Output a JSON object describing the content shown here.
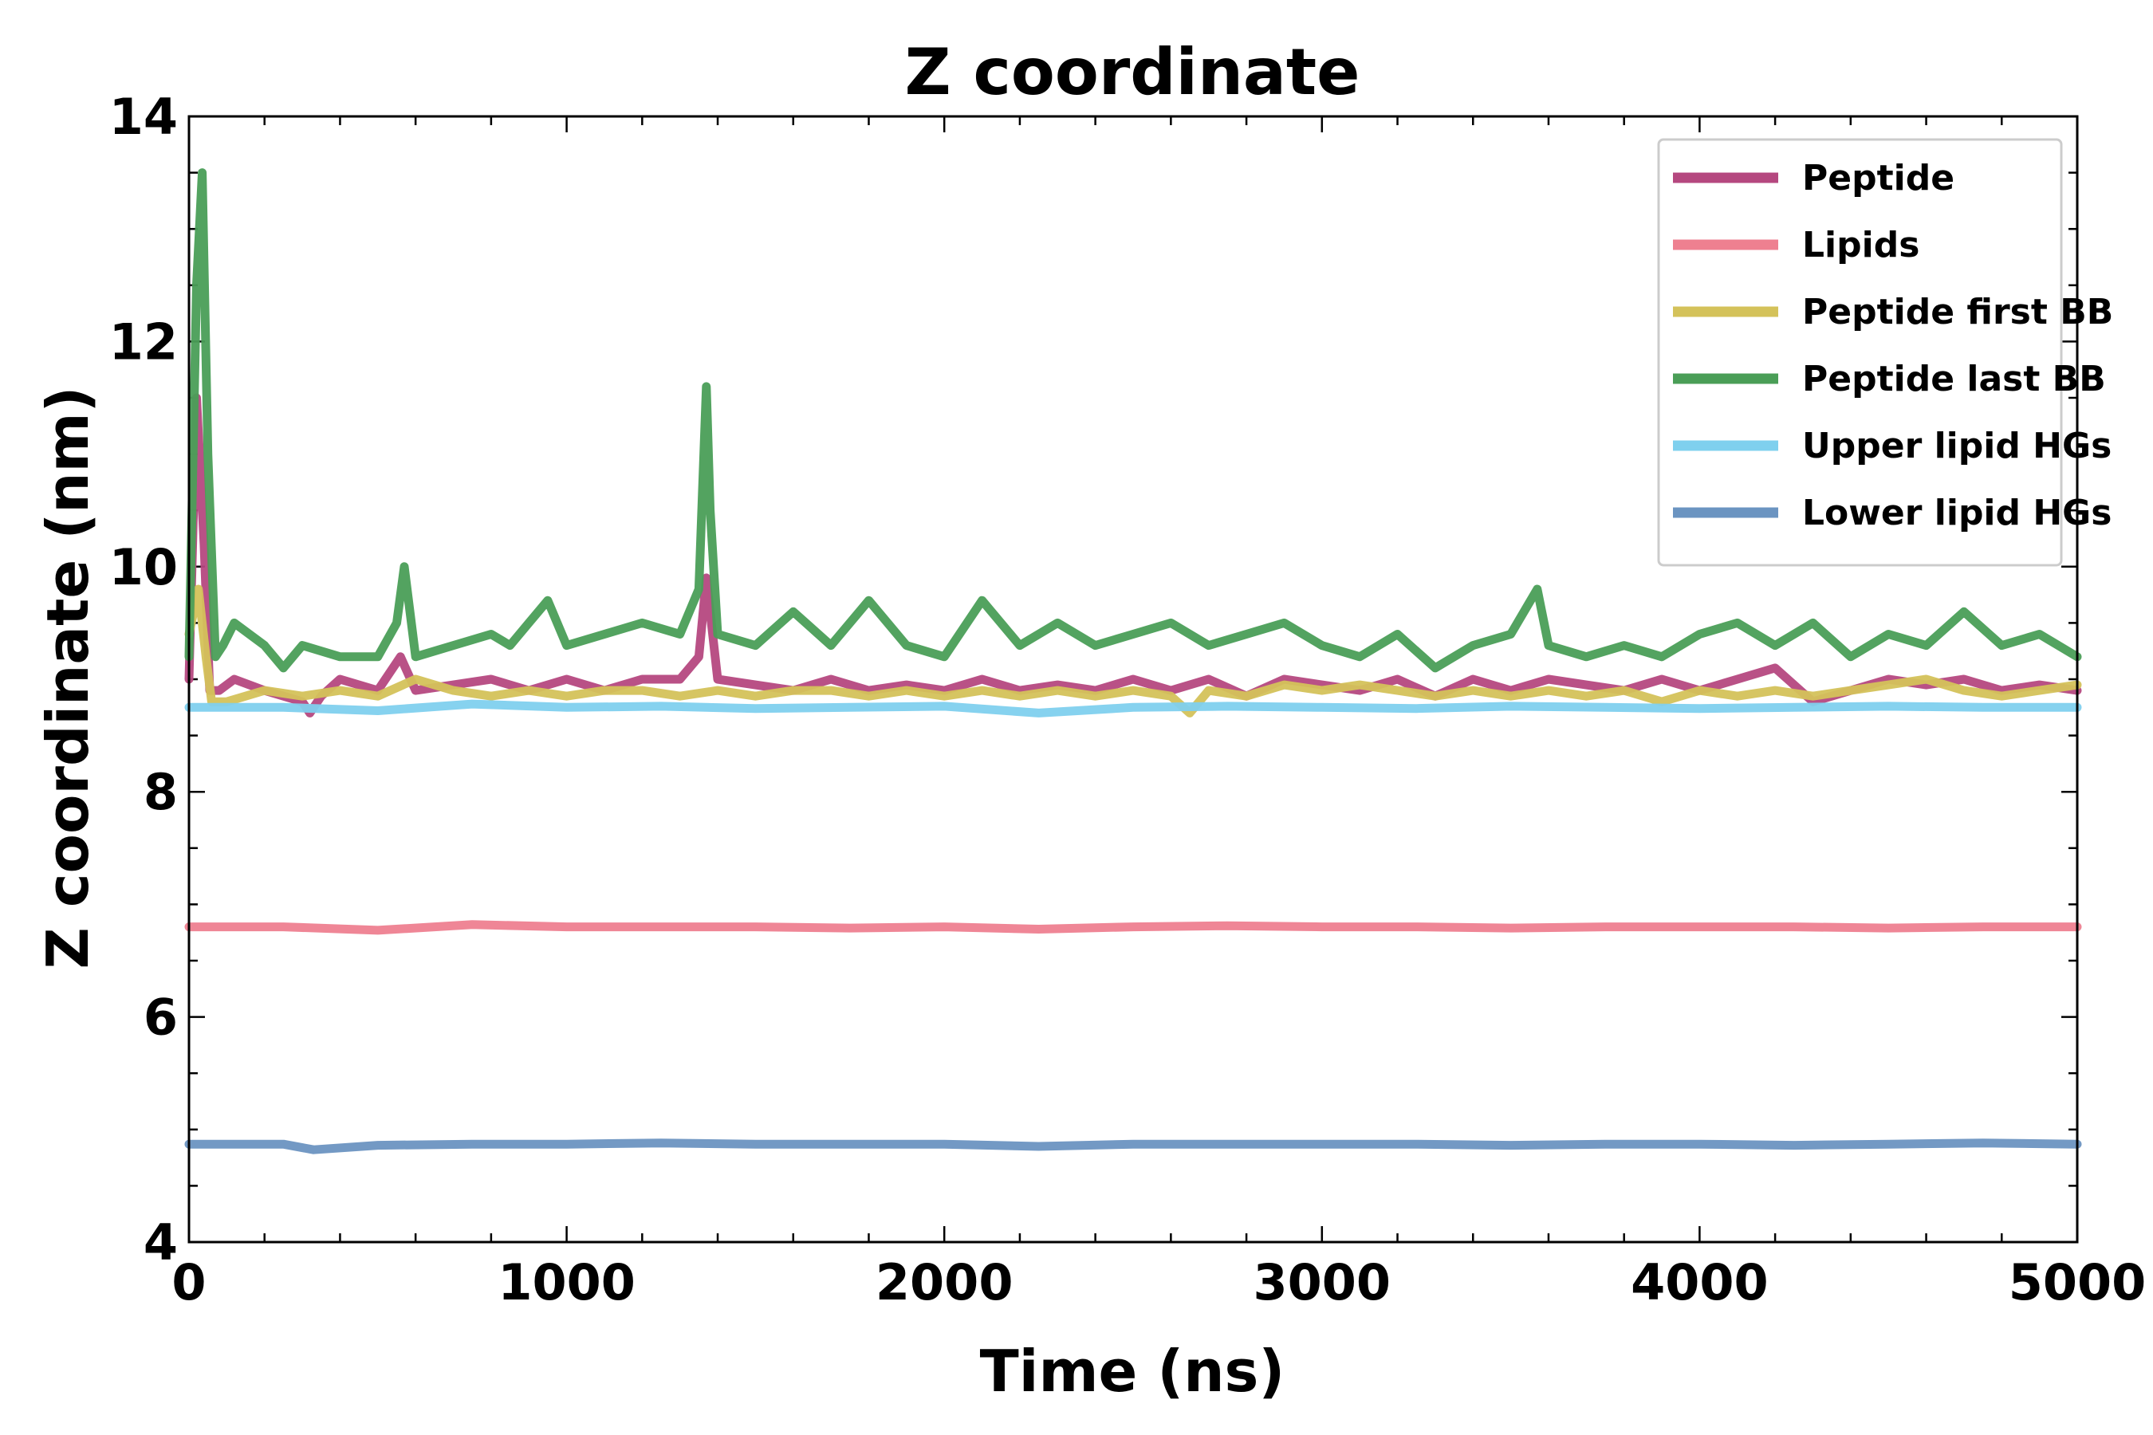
{
  "chart_data": {
    "type": "line",
    "title": "Z coordinate",
    "xlabel": "Time (ns)",
    "ylabel": "Z coordinate (nm)",
    "xlim": [
      0,
      5000
    ],
    "ylim": [
      4,
      14
    ],
    "xticks": [
      "0",
      "1000",
      "2000",
      "3000",
      "4000",
      "5000"
    ],
    "yticks": [
      "4",
      "6",
      "8",
      "10",
      "12",
      "14"
    ],
    "legend_position": "top-right",
    "series": [
      {
        "name": "Peptide",
        "color": "#b5487f",
        "x": [
          0,
          20,
          40,
          55,
          80,
          120,
          200,
          300,
          320,
          350,
          400,
          500,
          560,
          600,
          700,
          800,
          900,
          1000,
          1100,
          1200,
          1300,
          1350,
          1370,
          1400,
          1500,
          1600,
          1700,
          1800,
          1900,
          2000,
          2100,
          2200,
          2300,
          2400,
          2500,
          2600,
          2700,
          2800,
          2900,
          3000,
          3100,
          3200,
          3300,
          3400,
          3500,
          3600,
          3700,
          3800,
          3900,
          4000,
          4100,
          4200,
          4300,
          4400,
          4500,
          4600,
          4700,
          4800,
          4900,
          5000
        ],
        "values": [
          9.0,
          11.5,
          10.2,
          8.9,
          8.9,
          9.0,
          8.9,
          8.8,
          8.7,
          8.85,
          9.0,
          8.9,
          9.2,
          8.9,
          8.95,
          9.0,
          8.9,
          9.0,
          8.9,
          9.0,
          9.0,
          9.2,
          9.9,
          9.0,
          8.95,
          8.9,
          9.0,
          8.9,
          8.95,
          8.9,
          9.0,
          8.9,
          8.95,
          8.9,
          9.0,
          8.9,
          9.0,
          8.85,
          9.0,
          8.95,
          8.9,
          9.0,
          8.85,
          9.0,
          8.9,
          9.0,
          8.95,
          8.9,
          9.0,
          8.9,
          9.0,
          9.1,
          8.8,
          8.9,
          9.0,
          8.95,
          9.0,
          8.9,
          8.95,
          8.9
        ]
      },
      {
        "name": "Lipids",
        "color": "#ee8090",
        "x": [
          0,
          250,
          500,
          750,
          1000,
          1250,
          1500,
          1750,
          2000,
          2250,
          2500,
          2750,
          3000,
          3250,
          3500,
          3750,
          4000,
          4250,
          4500,
          4750,
          5000
        ],
        "values": [
          6.8,
          6.8,
          6.77,
          6.82,
          6.8,
          6.8,
          6.8,
          6.79,
          6.8,
          6.78,
          6.8,
          6.81,
          6.8,
          6.8,
          6.79,
          6.8,
          6.8,
          6.8,
          6.79,
          6.8,
          6.8
        ]
      },
      {
        "name": "Peptide first BB",
        "color": "#d4c25a",
        "x": [
          0,
          25,
          45,
          60,
          100,
          200,
          300,
          400,
          500,
          600,
          700,
          800,
          900,
          1000,
          1100,
          1200,
          1300,
          1400,
          1500,
          1600,
          1700,
          1800,
          1900,
          2000,
          2100,
          2200,
          2300,
          2400,
          2500,
          2600,
          2650,
          2700,
          2800,
          2900,
          3000,
          3100,
          3200,
          3300,
          3400,
          3500,
          3600,
          3700,
          3800,
          3900,
          4000,
          4100,
          4200,
          4300,
          4400,
          4500,
          4600,
          4700,
          4800,
          4900,
          5000
        ],
        "values": [
          9.4,
          9.8,
          9.2,
          8.8,
          8.8,
          8.9,
          8.85,
          8.9,
          8.85,
          9.0,
          8.9,
          8.85,
          8.9,
          8.85,
          8.9,
          8.9,
          8.85,
          8.9,
          8.85,
          8.9,
          8.9,
          8.85,
          8.9,
          8.85,
          8.9,
          8.85,
          8.9,
          8.85,
          8.9,
          8.85,
          8.7,
          8.9,
          8.85,
          8.95,
          8.9,
          8.95,
          8.9,
          8.85,
          8.9,
          8.85,
          8.9,
          8.85,
          8.9,
          8.8,
          8.9,
          8.85,
          8.9,
          8.85,
          8.9,
          8.95,
          9.0,
          8.9,
          8.85,
          8.9,
          8.95
        ]
      },
      {
        "name": "Peptide last BB",
        "color": "#4a9e57",
        "x": [
          0,
          20,
          35,
          50,
          70,
          90,
          120,
          200,
          250,
          300,
          400,
          500,
          550,
          570,
          600,
          700,
          800,
          850,
          900,
          950,
          1000,
          1100,
          1200,
          1300,
          1350,
          1370,
          1380,
          1400,
          1500,
          1600,
          1700,
          1800,
          1900,
          2000,
          2100,
          2200,
          2300,
          2400,
          2500,
          2600,
          2700,
          2800,
          2900,
          3000,
          3100,
          3200,
          3300,
          3400,
          3500,
          3570,
          3600,
          3700,
          3800,
          3900,
          4000,
          4100,
          4200,
          4300,
          4400,
          4500,
          4600,
          4700,
          4800,
          4900,
          5000
        ],
        "values": [
          9.2,
          12.5,
          13.5,
          11.0,
          9.2,
          9.3,
          9.5,
          9.3,
          9.1,
          9.3,
          9.2,
          9.2,
          9.5,
          10.0,
          9.2,
          9.3,
          9.4,
          9.3,
          9.5,
          9.7,
          9.3,
          9.4,
          9.5,
          9.4,
          9.8,
          11.6,
          10.5,
          9.4,
          9.3,
          9.6,
          9.3,
          9.7,
          9.3,
          9.2,
          9.7,
          9.3,
          9.5,
          9.3,
          9.4,
          9.5,
          9.3,
          9.4,
          9.5,
          9.3,
          9.2,
          9.4,
          9.1,
          9.3,
          9.4,
          9.8,
          9.3,
          9.2,
          9.3,
          9.2,
          9.4,
          9.5,
          9.3,
          9.5,
          9.2,
          9.4,
          9.3,
          9.6,
          9.3,
          9.4,
          9.2
        ]
      },
      {
        "name": "Upper lipid HGs",
        "color": "#7fd0ee",
        "x": [
          0,
          250,
          500,
          750,
          1000,
          1250,
          1500,
          1750,
          2000,
          2250,
          2500,
          2750,
          3000,
          3250,
          3500,
          3750,
          4000,
          4250,
          4500,
          4750,
          5000
        ],
        "values": [
          8.75,
          8.75,
          8.72,
          8.78,
          8.75,
          8.76,
          8.74,
          8.75,
          8.76,
          8.7,
          8.75,
          8.76,
          8.75,
          8.74,
          8.76,
          8.75,
          8.74,
          8.75,
          8.76,
          8.75,
          8.75
        ]
      },
      {
        "name": "Lower lipid HGs",
        "color": "#6b94c1",
        "x": [
          0,
          250,
          330,
          500,
          750,
          1000,
          1250,
          1500,
          1750,
          2000,
          2250,
          2500,
          2750,
          3000,
          3250,
          3500,
          3750,
          4000,
          4250,
          4500,
          4750,
          5000
        ],
        "values": [
          4.87,
          4.87,
          4.82,
          4.86,
          4.87,
          4.87,
          4.88,
          4.87,
          4.87,
          4.87,
          4.85,
          4.87,
          4.87,
          4.87,
          4.87,
          4.86,
          4.87,
          4.87,
          4.86,
          4.87,
          4.88,
          4.87
        ]
      }
    ]
  }
}
